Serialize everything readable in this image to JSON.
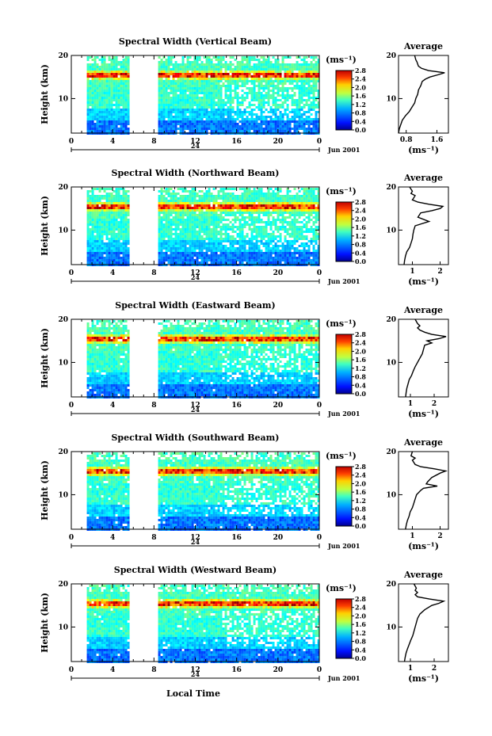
{
  "figure": {
    "date_label": "Jun 2001",
    "day_label": "24",
    "xlabel": "Local Time",
    "ylabel": "Height (km)",
    "unit_label": "(ms⁻¹)",
    "avg_title": "Average",
    "avg_xlabel": "(ms⁻¹)"
  },
  "chart_data": [
    {
      "type": "heatmap",
      "title": "Spectral Width (Vertical Beam)",
      "xlabel": "Local Time",
      "ylabel": "Height (km)",
      "x_ticks": [
        "0",
        "4",
        "8",
        "12",
        "16",
        "20",
        "0"
      ],
      "xlim": [
        0,
        24
      ],
      "ylim": [
        2,
        20
      ],
      "y_ticks": [
        "10",
        "20"
      ],
      "data_gap_hours": [
        5.8,
        8.2
      ],
      "data_start_hour": 1.5,
      "colorbar": {
        "min": 0.0,
        "max": 2.8,
        "ticks": [
          "2.8",
          "2.4",
          "2.0",
          "1.6",
          "1.2",
          "0.8",
          "0.4",
          "0.0"
        ]
      },
      "average_profile": {
        "title": "Average",
        "xlabel": "(ms⁻¹)",
        "x_ticks": [
          "0.8",
          "1.6"
        ],
        "xlim": [
          0.6,
          1.9
        ],
        "heights": [
          2,
          3,
          4,
          5,
          6,
          7,
          8,
          9,
          10,
          11,
          12,
          13,
          14,
          14.5,
          15,
          15.5,
          16,
          16.5,
          17,
          17.5,
          18,
          18.5,
          19,
          20
        ],
        "values": [
          0.6,
          0.62,
          0.66,
          0.7,
          0.78,
          0.88,
          0.95,
          1.02,
          1.05,
          1.1,
          1.12,
          1.18,
          1.22,
          1.3,
          1.42,
          1.62,
          1.8,
          1.38,
          1.2,
          1.12,
          1.1,
          1.08,
          1.05,
          1.02
        ]
      }
    },
    {
      "type": "heatmap",
      "title": "Spectral Width (Northward Beam)",
      "xlabel": "Local Time",
      "ylabel": "Height (km)",
      "x_ticks": [
        "0",
        "4",
        "8",
        "12",
        "16",
        "20",
        "0"
      ],
      "xlim": [
        0,
        24
      ],
      "ylim": [
        2,
        20
      ],
      "y_ticks": [
        "10",
        "20"
      ],
      "data_gap_hours": [
        5.8,
        8.2
      ],
      "data_start_hour": 1.5,
      "colorbar": {
        "min": 0.0,
        "max": 2.8,
        "ticks": [
          "2.8",
          "2.4",
          "2.0",
          "1.6",
          "1.2",
          "0.8",
          "0.4",
          "0.0"
        ]
      },
      "average_profile": {
        "title": "Average",
        "xlabel": "(ms⁻¹)",
        "x_ticks": [
          "1",
          "2"
        ],
        "xlim": [
          0.5,
          2.3
        ],
        "heights": [
          2,
          3,
          4,
          5,
          6,
          7,
          8,
          9,
          10,
          11,
          12,
          13,
          14,
          14.5,
          15,
          15.5,
          16,
          16.5,
          17,
          17.5,
          18,
          18.5,
          19,
          20
        ],
        "values": [
          0.7,
          0.72,
          0.75,
          0.8,
          0.9,
          0.95,
          1.0,
          1.02,
          1.05,
          1.1,
          1.6,
          1.2,
          1.3,
          1.7,
          2.0,
          2.1,
          1.6,
          1.2,
          1.0,
          1.05,
          1.1,
          0.95,
          1.0,
          0.9
        ]
      }
    },
    {
      "type": "heatmap",
      "title": "Spectral Width (Eastward Beam)",
      "xlabel": "Local Time",
      "ylabel": "Height (km)",
      "x_ticks": [
        "0",
        "4",
        "8",
        "12",
        "16",
        "20",
        "0"
      ],
      "xlim": [
        0,
        24
      ],
      "ylim": [
        2,
        20
      ],
      "y_ticks": [
        "10",
        "20"
      ],
      "data_gap_hours": [
        5.8,
        8.2
      ],
      "data_start_hour": 1.5,
      "colorbar": {
        "min": 0.0,
        "max": 2.8,
        "ticks": [
          "2.8",
          "2.4",
          "2.0",
          "1.6",
          "1.2",
          "0.8",
          "0.4",
          "0.0"
        ]
      },
      "average_profile": {
        "title": "Average",
        "xlabel": "(ms⁻¹)",
        "x_ticks": [
          "1",
          "2"
        ],
        "xlim": [
          0.5,
          2.6
        ],
        "heights": [
          2,
          3,
          4,
          5,
          6,
          7,
          8,
          9,
          10,
          11,
          12,
          13,
          14,
          14.5,
          15,
          15.5,
          16,
          16.5,
          17,
          17.5,
          18,
          18.5,
          19,
          20
        ],
        "values": [
          0.8,
          0.82,
          0.85,
          0.9,
          0.95,
          1.05,
          1.12,
          1.2,
          1.3,
          1.4,
          1.5,
          1.55,
          1.6,
          1.9,
          1.7,
          2.2,
          2.5,
          1.9,
          1.6,
          1.4,
          1.3,
          1.4,
          1.3,
          1.2
        ]
      }
    },
    {
      "type": "heatmap",
      "title": "Spectral Width (Southward Beam)",
      "xlabel": "Local Time",
      "ylabel": "Height (km)",
      "x_ticks": [
        "0",
        "4",
        "8",
        "12",
        "16",
        "20",
        "0"
      ],
      "xlim": [
        0,
        24
      ],
      "ylim": [
        2,
        20
      ],
      "y_ticks": [
        "10",
        "20"
      ],
      "data_gap_hours": [
        5.8,
        8.2
      ],
      "data_start_hour": 1.5,
      "colorbar": {
        "min": 0.0,
        "max": 2.8,
        "ticks": [
          "2.8",
          "2.4",
          "2.0",
          "1.6",
          "1.2",
          "0.8",
          "0.4",
          "0.0"
        ]
      },
      "average_profile": {
        "title": "Average",
        "xlabel": "(ms⁻¹)",
        "x_ticks": [
          "1",
          "2"
        ],
        "xlim": [
          0.5,
          2.3
        ],
        "heights": [
          2,
          3,
          4,
          5,
          6,
          7,
          8,
          9,
          10,
          11,
          11.5,
          12,
          12.5,
          13,
          14,
          15,
          15.5,
          16,
          16.5,
          17,
          18,
          18.5,
          19,
          20
        ],
        "values": [
          0.75,
          0.78,
          0.82,
          0.88,
          0.92,
          1.0,
          1.05,
          1.1,
          1.15,
          1.3,
          1.4,
          1.9,
          1.5,
          1.55,
          1.7,
          2.0,
          2.2,
          1.8,
          1.3,
          1.1,
          1.0,
          1.1,
          0.95,
          1.0
        ]
      }
    },
    {
      "type": "heatmap",
      "title": "Spectral Width (Westward Beam)",
      "xlabel": "Local Time",
      "ylabel": "Height (km)",
      "x_ticks": [
        "0",
        "4",
        "8",
        "12",
        "16",
        "20",
        "0"
      ],
      "xlim": [
        0,
        24
      ],
      "ylim": [
        2,
        20
      ],
      "y_ticks": [
        "10",
        "20"
      ],
      "data_gap_hours": [
        5.8,
        8.2
      ],
      "data_start_hour": 1.5,
      "colorbar": {
        "min": 0.0,
        "max": 2.8,
        "ticks": [
          "2.8",
          "2.4",
          "2.0",
          "1.6",
          "1.2",
          "0.8",
          "0.4",
          "0.0"
        ]
      },
      "average_profile": {
        "title": "Average",
        "xlabel": "(ms⁻¹)",
        "x_ticks": [
          "1",
          "2"
        ],
        "xlim": [
          0.5,
          2.6
        ],
        "heights": [
          2,
          3,
          4,
          5,
          6,
          7,
          8,
          9,
          10,
          11,
          12,
          13,
          14,
          15,
          15.5,
          16,
          16.5,
          17,
          17.5,
          18,
          18.5,
          19,
          20
        ],
        "values": [
          0.75,
          0.78,
          0.82,
          0.88,
          0.95,
          1.02,
          1.1,
          1.15,
          1.2,
          1.25,
          1.3,
          1.4,
          1.6,
          1.9,
          2.2,
          2.4,
          1.8,
          1.3,
          1.2,
          1.3,
          1.2,
          1.25,
          1.15
        ]
      }
    }
  ]
}
